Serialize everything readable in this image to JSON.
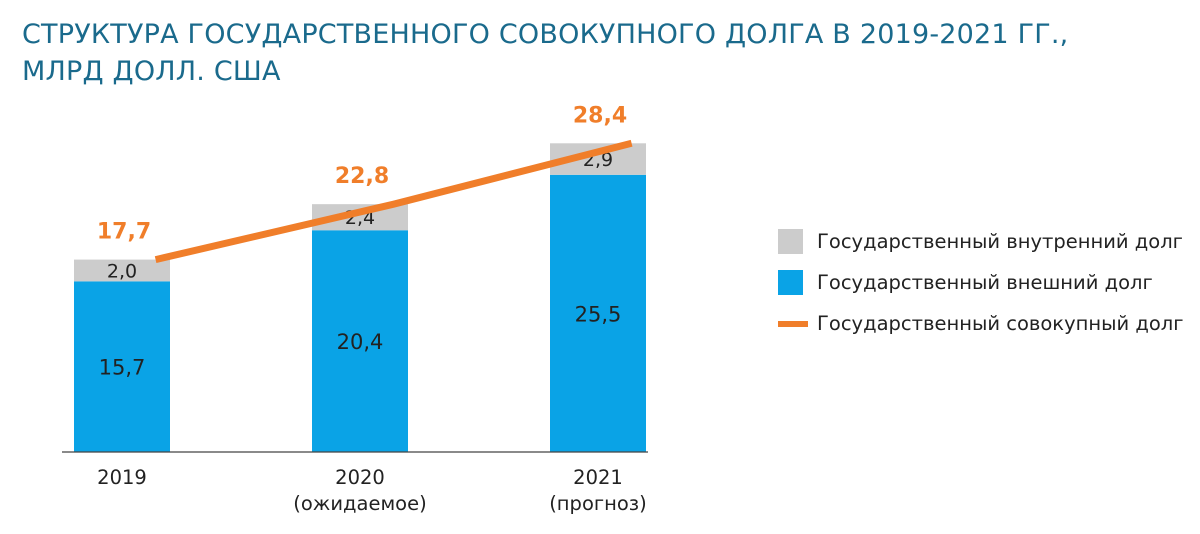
{
  "title": {
    "line1": "СТРУКТУРА ГОСУДАРСТВЕННОГО СОВОКУПНОГО ДОЛГА В 2019-2021 ГГ.,",
    "line2": "МЛРД ДОЛЛ. США"
  },
  "legend": {
    "internal": "Государственный внутренний долг",
    "external": "Государственный внешний долг",
    "total": "Государственный совокупный долг"
  },
  "colors": {
    "external": "#0aa3e6",
    "internal": "#cccccc",
    "total": "#f07e2a",
    "title": "#1a6a8c",
    "axis": "#444444"
  },
  "chart_data": {
    "type": "bar",
    "stacked": true,
    "categories": [
      [
        "2019"
      ],
      [
        "2020",
        "(ожидаемое)"
      ],
      [
        "2021",
        "(прогноз)"
      ]
    ],
    "series": [
      {
        "name": "Государственный внешний долг",
        "values": [
          15.7,
          20.4,
          25.5
        ],
        "labels": [
          "15,7",
          "20,4",
          "25,5"
        ]
      },
      {
        "name": "Государственный внутренний долг",
        "values": [
          2.0,
          2.4,
          2.9
        ],
        "labels": [
          "2,0",
          "2,4",
          "2,9"
        ]
      }
    ],
    "line_series": {
      "name": "Государственный совокупный долг",
      "values": [
        17.7,
        22.8,
        28.4
      ],
      "labels": [
        "17,7",
        "22,8",
        "28,4"
      ]
    },
    "ylim": [
      0,
      30
    ]
  }
}
